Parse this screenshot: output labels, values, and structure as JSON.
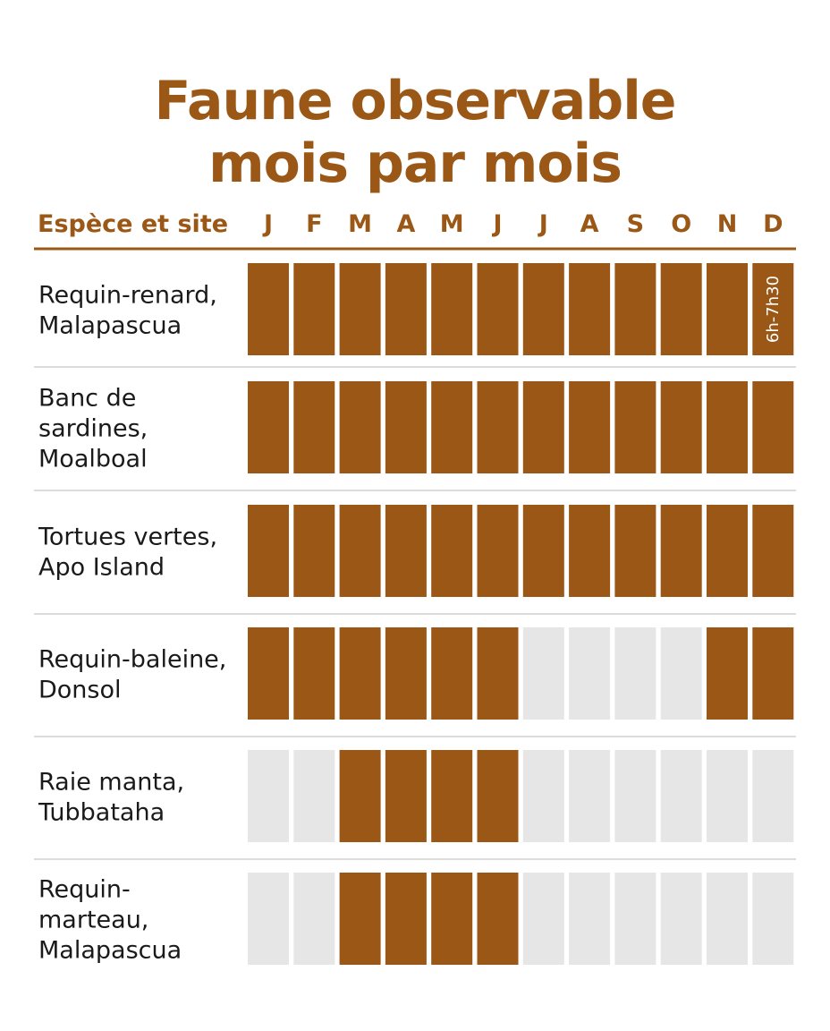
{
  "title": {
    "line1": "Faune observable",
    "line2": "mois par mois"
  },
  "colors": {
    "accent": "#9a5716",
    "active": "#9a5716",
    "inactive": "#e6e6e6",
    "separator": "#dcdcdc",
    "text": "#1a1a1a"
  },
  "chart_data": {
    "type": "heatmap",
    "row_header": "Espèce et site",
    "months": [
      "J",
      "F",
      "M",
      "A",
      "M",
      "J",
      "J",
      "A",
      "S",
      "O",
      "N",
      "D"
    ],
    "rows": [
      {
        "label": [
          "Requin-renard,",
          "Malapascua"
        ],
        "values": [
          1,
          1,
          1,
          1,
          1,
          1,
          1,
          1,
          1,
          1,
          1,
          1
        ],
        "annotation": {
          "month_index": 11,
          "text": "6h-7h30"
        }
      },
      {
        "label": [
          "Banc de",
          "sardines,",
          "Moalboal"
        ],
        "values": [
          1,
          1,
          1,
          1,
          1,
          1,
          1,
          1,
          1,
          1,
          1,
          1
        ]
      },
      {
        "label": [
          "Tortues vertes,",
          "Apo Island"
        ],
        "values": [
          1,
          1,
          1,
          1,
          1,
          1,
          1,
          1,
          1,
          1,
          1,
          1
        ]
      },
      {
        "label": [
          "Requin-baleine,",
          "Donsol"
        ],
        "values": [
          1,
          1,
          1,
          1,
          1,
          1,
          0,
          0,
          0,
          0,
          1,
          1
        ]
      },
      {
        "label": [
          "Raie manta,",
          "Tubbataha"
        ],
        "values": [
          0,
          0,
          1,
          1,
          1,
          1,
          0,
          0,
          0,
          0,
          0,
          0
        ]
      },
      {
        "label": [
          "Requin-",
          "marteau,",
          "Malapascua"
        ],
        "values": [
          0,
          0,
          1,
          1,
          1,
          1,
          0,
          0,
          0,
          0,
          0,
          0
        ]
      }
    ]
  }
}
